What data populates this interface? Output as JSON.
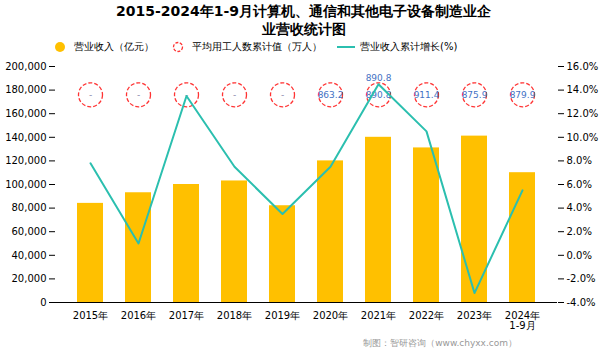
{
  "chart_data": {
    "type": "bar",
    "title": "2015-2024年1-9月计算机、通信和其他电子设备制造业企\n业营收统计图",
    "caption": "制图：智研咨询（www.chyxx.com）",
    "categories": [
      "2015年",
      "2016年",
      "2017年",
      "2018年",
      "2019年",
      "2020年",
      "2021年",
      "2022年",
      "2023年",
      "2024年\n1-9月"
    ],
    "series": [
      {
        "name": "营业收入（亿元）",
        "type": "bar",
        "color": "#FFC000",
        "values": [
          84000,
          93000,
          100000,
          103000,
          82000,
          120000,
          140000,
          131000,
          141000,
          110000
        ]
      },
      {
        "name": "平均用工人数累计值（万人）",
        "type": "scatter",
        "marker": "circle",
        "line_style": "dashed",
        "color": "#FF3333",
        "data_labels": true,
        "values": [
          null,
          null,
          null,
          null,
          null,
          863.2,
          890.8,
          911.4,
          875.9,
          879.9
        ],
        "value_labels": [
          "-",
          "-",
          "-",
          "-",
          "-",
          "863.2",
          "890.8",
          "911.4",
          "875.9",
          "879.9"
        ],
        "colors": [
          "#8888AA",
          "#8888AA",
          "#8888AA",
          "#8888AA",
          "#8888AA",
          "#4472C4",
          "#4472C4",
          "#4472C4",
          "#4472C4",
          "#4472C4"
        ]
      },
      {
        "name": "营业收入累计增长(%)",
        "type": "line",
        "axis": "y2",
        "color": "#2BBFAF",
        "values": [
          7.8,
          1.0,
          13.5,
          7.5,
          3.5,
          7.5,
          14.5,
          10.5,
          -3.2,
          5.5
        ]
      }
    ],
    "annotations": [
      {
        "text": "890.8",
        "category": "2021年",
        "color": "#4472C4"
      }
    ],
    "ylim": [
      0,
      200000
    ],
    "yticks": [
      0,
      {
        "value": 20000,
        "label": "20,000"
      },
      {
        "value": 40000,
        "label": "40,000"
      },
      {
        "value": 60000,
        "label": "60,000"
      },
      {
        "value": 80000,
        "label": "80,000"
      },
      {
        "value": 100000,
        "label": "100,000"
      },
      {
        "value": 120000,
        "label": "120,000"
      },
      {
        "value": 140000,
        "label": "140,000"
      },
      {
        "value": 160000,
        "label": "160,000"
      },
      {
        "value": 180000,
        "label": "180,000"
      },
      {
        "value": 200000,
        "label": "200,000"
      }
    ],
    "y2lim": [
      -4.0,
      16.0
    ],
    "y2ticks": [
      {
        "value": -4.0,
        "label": "-4.0%"
      },
      {
        "value": -2.0,
        "label": "-2.0%"
      },
      {
        "value": 0.0,
        "label": "0.0%"
      },
      {
        "value": 2.0,
        "label": "2.0%"
      },
      {
        "value": 4.0,
        "label": "4.0%"
      },
      {
        "value": 6.0,
        "label": "6.0%"
      },
      {
        "value": 8.0,
        "label": "8.0%"
      },
      {
        "value": 10.0,
        "label": "10.0%"
      },
      {
        "value": 12.0,
        "label": "12.0%"
      },
      {
        "value": 14.0,
        "label": "14.0%"
      },
      {
        "value": 16.0,
        "label": "16.0%"
      }
    ],
    "grid": false,
    "legend": "upper left"
  }
}
